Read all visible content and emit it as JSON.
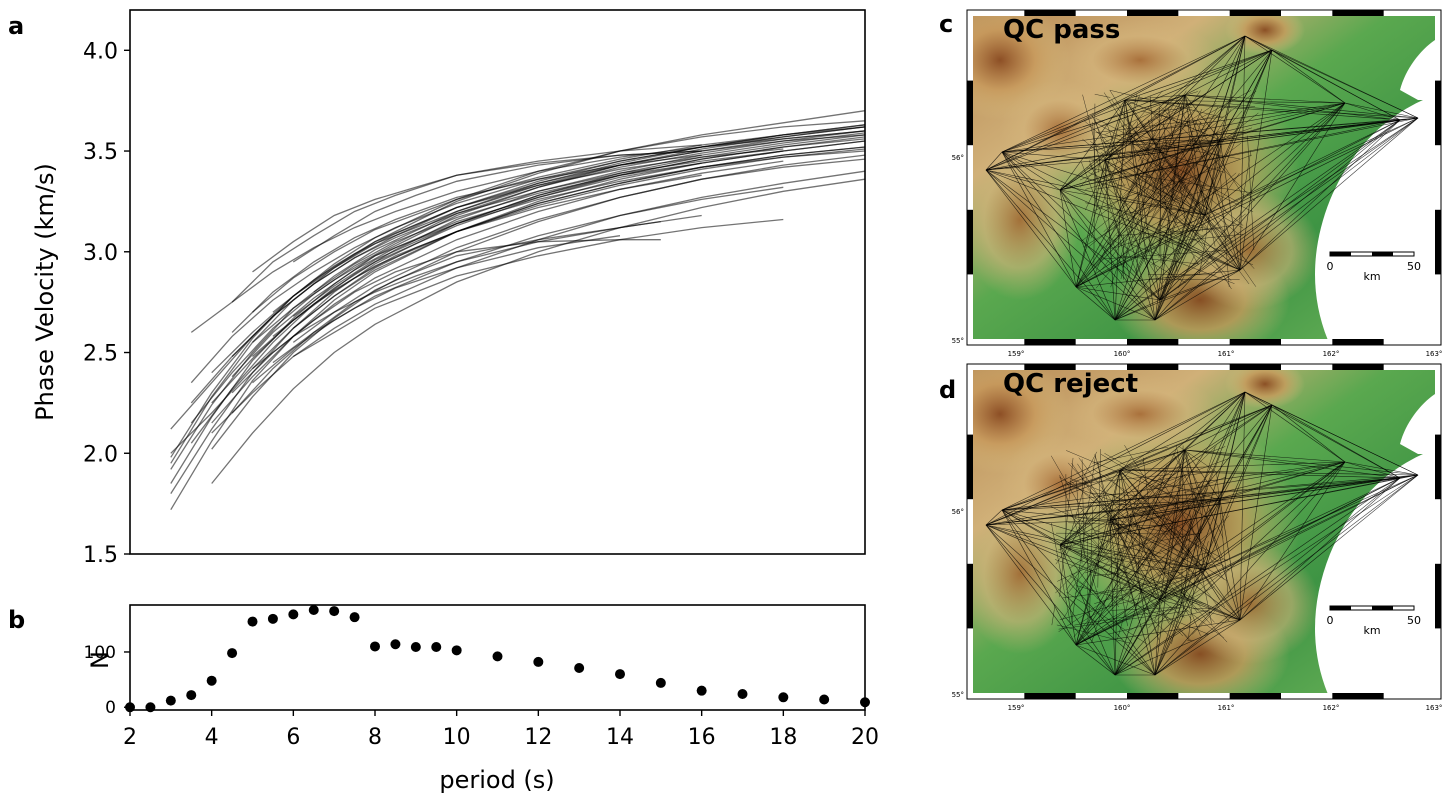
{
  "panels": {
    "a": "a",
    "b": "b",
    "c": "c",
    "d": "d"
  },
  "chart_data": [
    {
      "id": "a",
      "type": "line",
      "title": "",
      "ylabel": "Phase Velocity (km/s)",
      "xlabel": "",
      "xlim": [
        2,
        20
      ],
      "ylim": [
        1.5,
        4.2
      ],
      "yticks": [
        1.5,
        2.0,
        2.5,
        3.0,
        3.5,
        4.0
      ],
      "ytick_labels": [
        "1.5",
        "2.0",
        "2.5",
        "3.0",
        "3.5",
        "4.0"
      ],
      "series_color": "#000000",
      "series_opacity": 0.55,
      "series": [
        {
          "x": [
            3,
            4,
            5,
            6,
            7,
            8,
            10,
            12,
            14,
            16,
            18,
            20
          ],
          "y": [
            1.72,
            2.06,
            2.36,
            2.58,
            2.76,
            2.9,
            3.1,
            3.25,
            3.36,
            3.44,
            3.5,
            3.55
          ]
        },
        {
          "x": [
            3,
            4,
            5,
            6,
            7,
            8,
            10,
            12,
            14,
            16,
            18,
            20
          ],
          "y": [
            1.85,
            2.18,
            2.46,
            2.67,
            2.84,
            2.98,
            3.18,
            3.32,
            3.43,
            3.51,
            3.57,
            3.62
          ]
        },
        {
          "x": [
            3,
            4,
            5,
            6,
            7,
            8,
            10,
            12,
            14,
            16,
            18,
            20
          ],
          "y": [
            1.95,
            2.28,
            2.55,
            2.76,
            2.92,
            3.05,
            3.25,
            3.39,
            3.5,
            3.58,
            3.64,
            3.7
          ]
        },
        {
          "x": [
            3,
            4,
            5,
            6,
            7,
            8,
            10,
            12,
            14,
            16,
            18,
            20
          ],
          "y": [
            2.0,
            2.2,
            2.42,
            2.62,
            2.78,
            2.91,
            3.1,
            3.24,
            3.34,
            3.42,
            3.47,
            3.5
          ]
        },
        {
          "x": [
            3,
            4,
            5,
            6,
            7,
            8,
            10,
            12,
            14,
            16,
            18,
            20
          ],
          "y": [
            2.12,
            2.35,
            2.58,
            2.78,
            2.93,
            3.05,
            3.22,
            3.34,
            3.43,
            3.5,
            3.55,
            3.58
          ]
        },
        {
          "x": [
            3.5,
            4.5,
            5.5,
            6.5,
            7.5,
            8.5,
            10,
            12,
            14,
            16,
            18,
            20
          ],
          "y": [
            2.6,
            2.75,
            2.9,
            3.02,
            3.12,
            3.2,
            3.3,
            3.4,
            3.47,
            3.52,
            3.56,
            3.6
          ]
        },
        {
          "x": [
            3.5,
            4.5,
            5.5,
            6.5,
            7.5,
            8.5,
            10,
            12,
            14,
            16,
            18,
            20
          ],
          "y": [
            2.35,
            2.58,
            2.76,
            2.9,
            3.02,
            3.12,
            3.24,
            3.36,
            3.45,
            3.52,
            3.57,
            3.62
          ]
        },
        {
          "x": [
            4,
            5,
            6,
            7,
            8,
            10,
            12,
            14,
            16,
            18,
            20
          ],
          "y": [
            2.1,
            2.3,
            2.48,
            2.62,
            2.74,
            2.92,
            3.06,
            3.18,
            3.27,
            3.34,
            3.4
          ]
        },
        {
          "x": [
            4,
            5,
            6,
            7,
            8,
            10,
            12,
            14,
            16,
            18,
            20
          ],
          "y": [
            1.85,
            2.1,
            2.32,
            2.5,
            2.64,
            2.85,
            3.0,
            3.12,
            3.22,
            3.3,
            3.36
          ]
        },
        {
          "x": [
            4,
            5,
            6,
            7,
            8,
            10,
            12,
            14,
            16,
            18,
            20
          ],
          "y": [
            2.4,
            2.6,
            2.78,
            2.92,
            3.04,
            3.2,
            3.33,
            3.43,
            3.5,
            3.56,
            3.6
          ]
        },
        {
          "x": [
            4.5,
            5.5,
            6.5,
            7.5,
            8.5,
            10,
            12,
            14,
            16
          ],
          "y": [
            2.75,
            2.95,
            3.08,
            3.2,
            3.28,
            3.38,
            3.45,
            3.5,
            3.53
          ]
        },
        {
          "x": [
            4.5,
            5.5,
            6.5,
            7.5,
            8.5,
            10,
            12,
            14,
            15
          ],
          "y": [
            2.2,
            2.42,
            2.6,
            2.75,
            2.86,
            2.98,
            3.06,
            3.12,
            3.15
          ]
        },
        {
          "x": [
            4.5,
            5.5,
            6.5,
            7.5,
            8.5,
            10,
            12,
            14,
            15
          ],
          "y": [
            2.3,
            2.5,
            2.66,
            2.8,
            2.9,
            3.0,
            3.05,
            3.06,
            3.06
          ]
        },
        {
          "x": [
            5,
            6,
            7,
            8,
            9,
            10,
            12,
            14,
            16
          ],
          "y": [
            2.42,
            2.58,
            2.7,
            2.8,
            2.88,
            2.95,
            3.05,
            3.12,
            3.18
          ]
        },
        {
          "x": [
            5,
            6,
            7,
            8,
            9,
            10,
            12,
            14,
            16
          ],
          "y": [
            2.9,
            3.05,
            3.18,
            3.26,
            3.32,
            3.38,
            3.44,
            3.48,
            3.5
          ]
        },
        {
          "x": [
            5,
            6,
            7,
            8,
            10,
            12,
            14,
            16,
            18,
            20
          ],
          "y": [
            2.55,
            2.72,
            2.86,
            2.98,
            3.14,
            3.26,
            3.35,
            3.42,
            3.48,
            3.52
          ]
        },
        {
          "x": [
            5.5,
            6.5,
            7.5,
            8.5,
            10,
            12,
            14
          ],
          "y": [
            2.45,
            2.6,
            2.72,
            2.82,
            2.92,
            3.02,
            3.08
          ]
        },
        {
          "x": [
            6,
            7,
            8,
            9,
            10,
            12,
            14,
            16,
            18
          ],
          "y": [
            2.48,
            2.6,
            2.72,
            2.8,
            2.88,
            2.98,
            3.06,
            3.12,
            3.16
          ]
        },
        {
          "x": [
            6,
            7,
            8,
            9,
            10,
            12,
            14,
            16,
            18,
            20
          ],
          "y": [
            2.62,
            2.78,
            2.92,
            3.02,
            3.1,
            3.24,
            3.34,
            3.42,
            3.48,
            3.52
          ]
        },
        {
          "x": [
            6,
            7,
            8,
            9,
            10,
            12,
            14,
            16
          ],
          "y": [
            2.95,
            3.08,
            3.2,
            3.28,
            3.35,
            3.43,
            3.48,
            3.5
          ]
        },
        {
          "x": [
            3,
            4,
            5,
            6,
            7,
            8,
            10,
            12,
            14,
            16,
            18,
            20
          ],
          "y": [
            1.92,
            2.24,
            2.5,
            2.72,
            2.88,
            3.01,
            3.2,
            3.34,
            3.44,
            3.52,
            3.58,
            3.63
          ]
        },
        {
          "x": [
            3,
            4,
            5,
            6,
            7,
            8,
            10,
            12,
            14,
            16,
            18,
            20
          ],
          "y": [
            1.8,
            2.12,
            2.4,
            2.62,
            2.8,
            2.94,
            3.14,
            3.28,
            3.39,
            3.47,
            3.53,
            3.58
          ]
        },
        {
          "x": [
            3.5,
            4.5,
            5.5,
            6.5,
            7.5,
            8.5,
            10,
            12,
            14,
            16,
            18,
            20
          ],
          "y": [
            2.05,
            2.32,
            2.55,
            2.74,
            2.89,
            3.01,
            3.16,
            3.3,
            3.4,
            3.48,
            3.54,
            3.59
          ]
        },
        {
          "x": [
            3.5,
            4.5,
            5.5,
            6.5,
            7.5,
            8.5,
            10,
            12,
            14,
            16,
            18,
            20
          ],
          "y": [
            2.25,
            2.48,
            2.68,
            2.84,
            2.97,
            3.08,
            3.22,
            3.35,
            3.45,
            3.52,
            3.58,
            3.63
          ]
        },
        {
          "x": [
            4,
            5,
            6,
            7,
            8,
            10,
            12,
            14,
            16,
            18,
            20
          ],
          "y": [
            2.02,
            2.28,
            2.5,
            2.67,
            2.81,
            3.0,
            3.15,
            3.27,
            3.36,
            3.43,
            3.48
          ]
        },
        {
          "x": [
            4,
            5,
            6,
            7,
            8,
            10,
            12,
            14,
            16,
            18,
            20
          ],
          "y": [
            2.25,
            2.47,
            2.66,
            2.82,
            2.95,
            3.13,
            3.27,
            3.38,
            3.46,
            3.52,
            3.57
          ]
        },
        {
          "x": [
            4.5,
            5.5,
            6.5,
            7.5,
            8.5,
            10,
            12,
            14,
            16,
            18
          ],
          "y": [
            2.48,
            2.68,
            2.84,
            2.97,
            3.07,
            3.19,
            3.3,
            3.39,
            3.45,
            3.5
          ]
        },
        {
          "x": [
            4.5,
            5.5,
            6.5,
            7.5,
            8.5,
            10,
            12,
            14,
            16
          ],
          "y": [
            2.6,
            2.8,
            2.95,
            3.07,
            3.16,
            3.27,
            3.36,
            3.43,
            3.48
          ]
        },
        {
          "x": [
            5,
            6,
            7,
            8,
            10,
            12,
            14,
            16,
            18
          ],
          "y": [
            2.35,
            2.52,
            2.66,
            2.78,
            2.95,
            3.08,
            3.18,
            3.26,
            3.32
          ]
        },
        {
          "x": [
            5,
            6,
            7,
            8,
            10,
            12,
            14,
            16,
            18,
            20
          ],
          "y": [
            2.7,
            2.87,
            3.0,
            3.11,
            3.26,
            3.37,
            3.46,
            3.53,
            3.58,
            3.62
          ]
        },
        {
          "x": [
            5.5,
            6.5,
            7.5,
            8.5,
            10,
            12,
            14,
            16
          ],
          "y": [
            2.58,
            2.74,
            2.87,
            2.98,
            3.1,
            3.22,
            3.31,
            3.38
          ]
        },
        {
          "x": [
            6,
            7,
            8,
            10,
            12,
            14,
            16,
            18,
            20
          ],
          "y": [
            2.55,
            2.7,
            2.83,
            3.02,
            3.16,
            3.27,
            3.36,
            3.42,
            3.46
          ]
        },
        {
          "x": [
            6.5,
            7.5,
            8.5,
            10,
            12,
            14,
            16
          ],
          "y": [
            2.8,
            2.94,
            3.05,
            3.17,
            3.29,
            3.38,
            3.44
          ]
        },
        {
          "x": [
            3,
            4,
            5,
            6,
            7,
            8,
            10,
            12,
            14,
            16,
            18,
            20
          ],
          "y": [
            1.98,
            2.3,
            2.57,
            2.78,
            2.94,
            3.07,
            3.26,
            3.4,
            3.5,
            3.57,
            3.62,
            3.65
          ]
        },
        {
          "x": [
            3.5,
            4.5,
            5.5,
            6.5,
            7.5,
            8.5,
            10,
            12,
            14,
            16,
            18,
            20
          ],
          "y": [
            2.15,
            2.4,
            2.62,
            2.79,
            2.93,
            3.04,
            3.19,
            3.32,
            3.42,
            3.49,
            3.55,
            3.6
          ]
        },
        {
          "x": [
            4,
            5,
            6,
            7,
            8,
            10,
            12,
            14,
            16,
            18
          ],
          "y": [
            2.15,
            2.38,
            2.58,
            2.74,
            2.87,
            3.06,
            3.2,
            3.31,
            3.39,
            3.45
          ]
        },
        {
          "x": [
            4.5,
            5.5,
            6.5,
            7.5,
            8.5,
            10,
            12,
            14,
            16,
            18,
            20
          ],
          "y": [
            2.38,
            2.6,
            2.77,
            2.91,
            3.02,
            3.15,
            3.27,
            3.37,
            3.44,
            3.5,
            3.55
          ]
        },
        {
          "x": [
            5,
            6,
            7,
            8,
            10,
            12,
            14,
            16,
            18,
            20
          ],
          "y": [
            2.48,
            2.66,
            2.81,
            2.93,
            3.1,
            3.23,
            3.33,
            3.41,
            3.47,
            3.51
          ]
        },
        {
          "x": [
            5.5,
            6.5,
            7.5,
            8.5,
            10,
            12,
            14,
            16,
            18
          ],
          "y": [
            2.7,
            2.86,
            2.99,
            3.09,
            3.22,
            3.33,
            3.41,
            3.47,
            3.51
          ]
        },
        {
          "x": [
            6,
            7,
            8,
            10,
            12,
            14,
            16,
            18,
            20
          ],
          "y": [
            2.68,
            2.83,
            2.96,
            3.14,
            3.28,
            3.38,
            3.46,
            3.52,
            3.56
          ]
        }
      ]
    },
    {
      "id": "b",
      "type": "scatter",
      "title": "",
      "ylabel": "N",
      "xlabel": "period (s)",
      "xlim": [
        2,
        20
      ],
      "ylim": [
        -5,
        185
      ],
      "yticks": [
        0,
        100
      ],
      "ytick_labels": [
        "0",
        "100"
      ],
      "xticks": [
        2,
        4,
        6,
        8,
        10,
        12,
        14,
        16,
        18,
        20
      ],
      "xtick_labels": [
        "2",
        "4",
        "6",
        "8",
        "10",
        "12",
        "14",
        "16",
        "18",
        "20"
      ],
      "marker_color": "#000000",
      "x": [
        2,
        2.5,
        3,
        3.5,
        4,
        4.5,
        5,
        5.5,
        6,
        6.5,
        7,
        7.5,
        8,
        8.5,
        9,
        9.5,
        10,
        11,
        12,
        13,
        14,
        15,
        16,
        17,
        18,
        19,
        20
      ],
      "y": [
        0,
        0,
        12,
        22,
        48,
        98,
        155,
        160,
        168,
        176,
        174,
        163,
        110,
        114,
        109,
        109,
        103,
        92,
        82,
        71,
        60,
        44,
        30,
        24,
        18,
        14,
        9
      ]
    }
  ],
  "maps": [
    {
      "id": "c",
      "title": "QC pass",
      "lon_labels": [
        "159°",
        "160°",
        "161°",
        "162°",
        "163°"
      ],
      "lat_labels": [
        "56°",
        "55°"
      ],
      "scale": {
        "start": "0",
        "end": "50",
        "unit": "km"
      }
    },
    {
      "id": "d",
      "title": "QC reject",
      "lon_labels": [
        "159°",
        "160°",
        "161°",
        "162°",
        "163°"
      ],
      "lat_labels": [
        "56°",
        "55°"
      ],
      "scale": {
        "start": "0",
        "end": "50",
        "unit": "km"
      }
    }
  ],
  "colors": {
    "ink": "#000000",
    "land_green": "#3f9a45",
    "land_tan": "#c8a06a",
    "land_brown": "#9b5a2a",
    "sea": "#ffffff"
  }
}
